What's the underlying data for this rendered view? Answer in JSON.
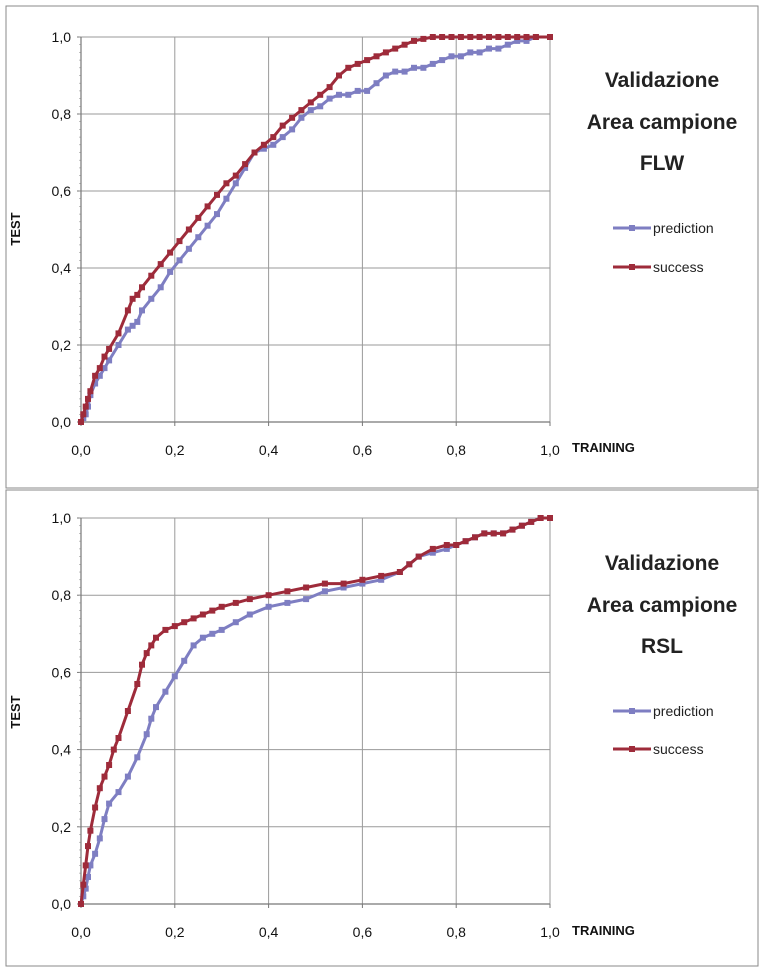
{
  "chart_data": [
    {
      "type": "line",
      "title": "Validazione\nArea campione\nFLW",
      "title_lines": [
        "Validazione",
        "Area campione",
        "FLW"
      ],
      "xlabel": "TRAINING",
      "ylabel": "TEST",
      "xlim": [
        0,
        1
      ],
      "ylim": [
        0,
        1
      ],
      "x_ticks": [
        "0,0",
        "0,2",
        "0,4",
        "0,6",
        "0,8",
        "1,0"
      ],
      "y_ticks": [
        "0,0",
        "0,2",
        "0,4",
        "0,6",
        "0,8",
        "1,0"
      ],
      "grid": true,
      "legend_position": "right",
      "series": [
        {
          "name": "prediction",
          "color": "#7e7ec2",
          "x": [
            0.0,
            0.005,
            0.01,
            0.015,
            0.02,
            0.03,
            0.04,
            0.05,
            0.06,
            0.08,
            0.1,
            0.11,
            0.12,
            0.13,
            0.15,
            0.17,
            0.19,
            0.21,
            0.23,
            0.25,
            0.27,
            0.29,
            0.31,
            0.33,
            0.35,
            0.37,
            0.39,
            0.41,
            0.43,
            0.45,
            0.47,
            0.49,
            0.51,
            0.53,
            0.55,
            0.57,
            0.59,
            0.61,
            0.63,
            0.65,
            0.67,
            0.69,
            0.71,
            0.73,
            0.75,
            0.77,
            0.79,
            0.81,
            0.83,
            0.85,
            0.87,
            0.89,
            0.91,
            0.93,
            0.95,
            0.97,
            1.0
          ],
          "y": [
            0.0,
            0.01,
            0.02,
            0.04,
            0.07,
            0.1,
            0.12,
            0.14,
            0.16,
            0.2,
            0.24,
            0.25,
            0.26,
            0.29,
            0.32,
            0.35,
            0.39,
            0.42,
            0.45,
            0.48,
            0.51,
            0.54,
            0.58,
            0.62,
            0.66,
            0.7,
            0.71,
            0.72,
            0.74,
            0.76,
            0.79,
            0.81,
            0.82,
            0.84,
            0.85,
            0.85,
            0.86,
            0.86,
            0.88,
            0.9,
            0.91,
            0.91,
            0.92,
            0.92,
            0.93,
            0.94,
            0.95,
            0.95,
            0.96,
            0.96,
            0.97,
            0.97,
            0.98,
            0.99,
            0.99,
            1.0,
            1.0
          ]
        },
        {
          "name": "success",
          "color": "#9e2b3a",
          "x": [
            0.0,
            0.005,
            0.01,
            0.015,
            0.02,
            0.03,
            0.04,
            0.05,
            0.06,
            0.08,
            0.1,
            0.11,
            0.12,
            0.13,
            0.15,
            0.17,
            0.19,
            0.21,
            0.23,
            0.25,
            0.27,
            0.29,
            0.31,
            0.33,
            0.35,
            0.37,
            0.39,
            0.41,
            0.43,
            0.45,
            0.47,
            0.49,
            0.51,
            0.53,
            0.55,
            0.57,
            0.59,
            0.61,
            0.63,
            0.65,
            0.67,
            0.69,
            0.71,
            0.73,
            0.75,
            0.77,
            0.79,
            0.81,
            0.83,
            0.85,
            0.87,
            0.89,
            0.91,
            0.93,
            0.95,
            0.97,
            1.0
          ],
          "y": [
            0.0,
            0.02,
            0.04,
            0.06,
            0.08,
            0.12,
            0.14,
            0.17,
            0.19,
            0.23,
            0.29,
            0.32,
            0.33,
            0.35,
            0.38,
            0.41,
            0.44,
            0.47,
            0.5,
            0.53,
            0.56,
            0.59,
            0.62,
            0.64,
            0.67,
            0.7,
            0.72,
            0.74,
            0.77,
            0.79,
            0.81,
            0.83,
            0.85,
            0.87,
            0.9,
            0.92,
            0.93,
            0.94,
            0.95,
            0.96,
            0.97,
            0.98,
            0.99,
            0.995,
            1.0,
            1.0,
            1.0,
            1.0,
            1.0,
            1.0,
            1.0,
            1.0,
            1.0,
            1.0,
            1.0,
            1.0,
            1.0
          ]
        }
      ]
    },
    {
      "type": "line",
      "title": "Validazione\nArea campione\nRSL",
      "title_lines": [
        "Validazione",
        "Area campione",
        "RSL"
      ],
      "xlabel": "TRAINING",
      "ylabel": "TEST",
      "xlim": [
        0,
        1
      ],
      "ylim": [
        0,
        1
      ],
      "x_ticks": [
        "0,0",
        "0,2",
        "0,4",
        "0,6",
        "0,8",
        "1,0"
      ],
      "y_ticks": [
        "0,0",
        "0,2",
        "0,4",
        "0,6",
        "0,8",
        "1,0"
      ],
      "grid": true,
      "legend_position": "right",
      "series": [
        {
          "name": "prediction",
          "color": "#7e7ec2",
          "x": [
            0.0,
            0.005,
            0.01,
            0.015,
            0.02,
            0.03,
            0.04,
            0.05,
            0.06,
            0.08,
            0.1,
            0.12,
            0.14,
            0.15,
            0.16,
            0.18,
            0.2,
            0.22,
            0.24,
            0.26,
            0.28,
            0.3,
            0.33,
            0.36,
            0.4,
            0.44,
            0.48,
            0.52,
            0.56,
            0.6,
            0.64,
            0.68,
            0.7,
            0.72,
            0.75,
            0.78,
            0.8,
            0.82,
            0.84,
            0.86,
            0.88,
            0.9,
            0.92,
            0.94,
            0.96,
            0.98,
            1.0
          ],
          "y": [
            0.0,
            0.02,
            0.04,
            0.07,
            0.1,
            0.13,
            0.17,
            0.22,
            0.26,
            0.29,
            0.33,
            0.38,
            0.44,
            0.48,
            0.51,
            0.55,
            0.59,
            0.63,
            0.67,
            0.69,
            0.7,
            0.71,
            0.73,
            0.75,
            0.77,
            0.78,
            0.79,
            0.81,
            0.82,
            0.83,
            0.84,
            0.86,
            0.88,
            0.9,
            0.91,
            0.92,
            0.93,
            0.94,
            0.95,
            0.96,
            0.96,
            0.96,
            0.97,
            0.98,
            0.99,
            1.0,
            1.0
          ]
        },
        {
          "name": "success",
          "color": "#9e2b3a",
          "x": [
            0.0,
            0.005,
            0.01,
            0.015,
            0.02,
            0.03,
            0.04,
            0.05,
            0.06,
            0.07,
            0.08,
            0.1,
            0.12,
            0.13,
            0.14,
            0.15,
            0.16,
            0.18,
            0.2,
            0.22,
            0.24,
            0.26,
            0.28,
            0.3,
            0.33,
            0.36,
            0.4,
            0.44,
            0.48,
            0.52,
            0.56,
            0.6,
            0.64,
            0.68,
            0.7,
            0.72,
            0.75,
            0.78,
            0.8,
            0.82,
            0.84,
            0.86,
            0.88,
            0.9,
            0.92,
            0.94,
            0.96,
            0.98,
            1.0
          ],
          "y": [
            0.0,
            0.05,
            0.1,
            0.15,
            0.19,
            0.25,
            0.3,
            0.33,
            0.36,
            0.4,
            0.43,
            0.5,
            0.57,
            0.62,
            0.65,
            0.67,
            0.69,
            0.71,
            0.72,
            0.73,
            0.74,
            0.75,
            0.76,
            0.77,
            0.78,
            0.79,
            0.8,
            0.81,
            0.82,
            0.83,
            0.83,
            0.84,
            0.85,
            0.86,
            0.88,
            0.9,
            0.92,
            0.93,
            0.93,
            0.94,
            0.95,
            0.96,
            0.96,
            0.96,
            0.97,
            0.98,
            0.99,
            1.0,
            1.0
          ]
        }
      ]
    }
  ]
}
